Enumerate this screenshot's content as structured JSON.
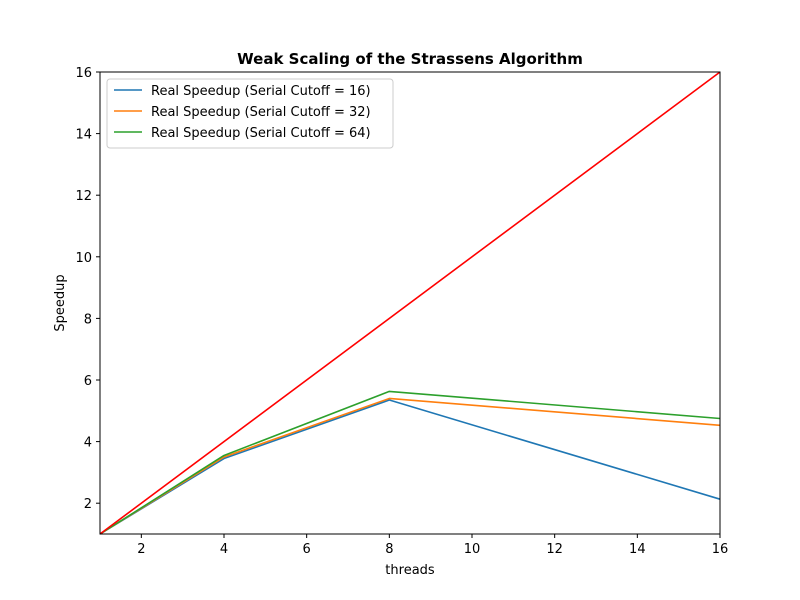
{
  "chart_data": {
    "type": "line",
    "title": "Weak Scaling of the Strassens Algorithm",
    "xlabel": "threads",
    "ylabel": "Speedup",
    "xlim": [
      1,
      16
    ],
    "ylim": [
      1,
      16
    ],
    "xticks": [
      2,
      4,
      6,
      8,
      10,
      12,
      14,
      16
    ],
    "yticks": [
      2,
      4,
      6,
      8,
      10,
      12,
      14,
      16
    ],
    "grid": false,
    "legend_position": "top-left",
    "series": [
      {
        "name": "Real Speedup (Serial Cutoff = 16)",
        "color": "#1f77b4",
        "in_legend": true,
        "x": [
          1,
          4,
          8,
          16
        ],
        "y": [
          1,
          3.45,
          5.35,
          2.13
        ]
      },
      {
        "name": "Real Speedup (Serial Cutoff = 32)",
        "color": "#ff7f0e",
        "in_legend": true,
        "x": [
          1,
          4,
          8,
          16
        ],
        "y": [
          1,
          3.5,
          5.4,
          4.53
        ]
      },
      {
        "name": "Real Speedup (Serial Cutoff = 64)",
        "color": "#2ca02c",
        "in_legend": true,
        "x": [
          1,
          4,
          8,
          16
        ],
        "y": [
          1,
          3.55,
          5.63,
          4.75
        ]
      },
      {
        "name": "",
        "color": "#ff0000",
        "in_legend": false,
        "x": [
          1,
          16
        ],
        "y": [
          1,
          16
        ]
      }
    ]
  }
}
